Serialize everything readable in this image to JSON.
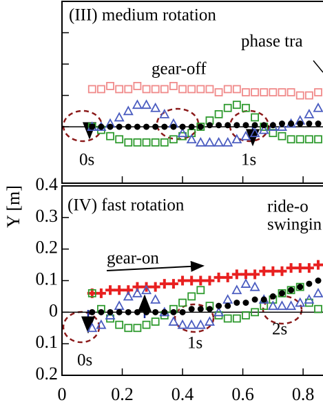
{
  "chart_data": [
    {
      "type": "scatter",
      "annotations": [
        "(III) medium rotation",
        "phase tra",
        "gear-off",
        "0s",
        "1s"
      ],
      "x": [
        0.1,
        0.13,
        0.16,
        0.19,
        0.22,
        0.25,
        0.28,
        0.31,
        0.34,
        0.37,
        0.4,
        0.43,
        0.46,
        0.49,
        0.52,
        0.55,
        0.58,
        0.61,
        0.64,
        0.67,
        0.7,
        0.73,
        0.76,
        0.79,
        0.82,
        0.85
      ],
      "series": [
        {
          "marker": "square-open",
          "color": "#f08a8a",
          "values": [
            0.12,
            0.12,
            0.13,
            0.12,
            0.12,
            0.13,
            0.12,
            0.12,
            0.12,
            0.13,
            0.12,
            0.12,
            0.12,
            0.12,
            0.11,
            0.12,
            0.12,
            0.11,
            0.11,
            0.11,
            0.11,
            0.11,
            0.11,
            0.1,
            0.1,
            0.11
          ]
        },
        {
          "marker": "square-open",
          "color": "#2e9a2e",
          "values": [
            0.0,
            -0.01,
            -0.03,
            -0.04,
            -0.05,
            -0.05,
            -0.05,
            -0.05,
            -0.05,
            -0.04,
            -0.03,
            -0.02,
            0.0,
            0.02,
            0.04,
            0.06,
            0.07,
            0.06,
            0.03,
            0.0,
            -0.02,
            -0.03,
            -0.04,
            -0.04,
            -0.04,
            -0.04
          ]
        },
        {
          "marker": "triangle-open",
          "color": "#4a5cc0",
          "values": [
            0.0,
            0.0,
            0.01,
            0.03,
            0.05,
            0.07,
            0.07,
            0.06,
            0.04,
            0.01,
            -0.02,
            -0.04,
            -0.05,
            -0.05,
            -0.05,
            -0.05,
            -0.04,
            -0.03,
            -0.02,
            -0.01,
            0.0,
            0.0,
            0.01,
            0.02,
            0.04,
            0.06
          ]
        },
        {
          "marker": "circle",
          "color": "#000000",
          "values": [
            0,
            0,
            0,
            0,
            0,
            0,
            0,
            0,
            0,
            0,
            0,
            0,
            0,
            0.005,
            0.005,
            0.005,
            0.005,
            0.005,
            0.005,
            0.005,
            0.005,
            0.01,
            0.01,
            0.01,
            0.01,
            0.01
          ]
        }
      ],
      "xlim": [
        0,
        0.866
      ],
      "xticks": [
        0.2,
        0.4,
        0.6,
        0.8
      ],
      "x_tick_labels": false,
      "ylim": [
        -0.18,
        0.4
      ],
      "yticks": [
        0,
        0.1,
        0.2,
        0.3
      ],
      "y_tick_labels": false
    },
    {
      "type": "scatter",
      "annotations": [
        "(IV) fast rotation",
        "ride-o",
        "swingin",
        "gear-on",
        "0s",
        "1s",
        "2s"
      ],
      "y_label": "Y [m]",
      "x": [
        0.1,
        0.13,
        0.16,
        0.19,
        0.22,
        0.25,
        0.28,
        0.31,
        0.34,
        0.37,
        0.4,
        0.43,
        0.46,
        0.49,
        0.52,
        0.55,
        0.58,
        0.61,
        0.64,
        0.67,
        0.7,
        0.73,
        0.76,
        0.79,
        0.82,
        0.85
      ],
      "series": [
        {
          "marker": "cross",
          "color": "#e82020",
          "values": [
            0.06,
            0.06,
            0.07,
            0.07,
            0.07,
            0.08,
            0.08,
            0.08,
            0.09,
            0.09,
            0.1,
            0.1,
            0.1,
            0.1,
            0.11,
            0.11,
            0.12,
            0.12,
            0.12,
            0.13,
            0.13,
            0.13,
            0.14,
            0.14,
            0.14,
            0.15
          ]
        },
        {
          "marker": "square-open",
          "color": "#2e9a2e",
          "values": [
            0.06,
            0.01,
            -0.02,
            -0.04,
            -0.05,
            -0.05,
            -0.04,
            -0.03,
            -0.01,
            0.01,
            0.03,
            0.05,
            0.07,
            0.02,
            -0.01,
            -0.02,
            -0.02,
            -0.01,
            0.0,
            0.02,
            0.04,
            0.06,
            0.07,
            0.08,
            0.03,
            0.01
          ]
        },
        {
          "marker": "triangle-open",
          "color": "#4a5cc0",
          "values": [
            -0.05,
            -0.04,
            -0.01,
            0.02,
            0.05,
            0.06,
            0.07,
            0.04,
            0.0,
            -0.03,
            -0.04,
            -0.04,
            -0.04,
            -0.03,
            0.0,
            0.04,
            0.07,
            0.09,
            0.08,
            0.04,
            0.02,
            0.02,
            0.02,
            0.03,
            0.04,
            0.06
          ]
        },
        {
          "marker": "circle",
          "color": "#000000",
          "values": [
            0,
            0,
            0,
            0,
            0,
            0,
            0,
            0,
            0,
            0,
            0,
            0.01,
            0.01,
            0.01,
            0.02,
            0.02,
            0.03,
            0.03,
            0.04,
            0.04,
            0.05,
            0.06,
            0.07,
            0.08,
            0.09,
            0.1
          ]
        }
      ],
      "xlim": [
        0,
        0.866
      ],
      "xticks": [
        0,
        0.2,
        0.4,
        0.6,
        0.8
      ],
      "x_tick_labels": true,
      "ylim": [
        -0.2,
        0.4
      ],
      "yticks": [
        {
          "value": 0.4,
          "label": "0.4"
        },
        0.3,
        0.2,
        0.1,
        0,
        {
          "value": -0.1,
          "label": "0.1"
        },
        {
          "value": -0.2,
          "label": "0.2"
        }
      ],
      "y_tick_labels": true
    }
  ]
}
